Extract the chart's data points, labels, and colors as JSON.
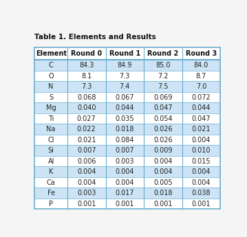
{
  "title": "Table 1. Elements and Results",
  "columns": [
    "Element",
    "Round 0",
    "Round 1",
    "Round 2",
    "Round 3"
  ],
  "rows": [
    [
      "C",
      "84.3",
      "84.9",
      "85.0",
      "84.0"
    ],
    [
      "O",
      "8.1",
      "7.3",
      "7.2",
      "8.7"
    ],
    [
      "N",
      "7.3",
      "7.4",
      "7.5",
      "7.0"
    ],
    [
      "S",
      "0.068",
      "0.067",
      "0.069",
      "0.072"
    ],
    [
      "Mg",
      "0.040",
      "0.044",
      "0.047",
      "0.044"
    ],
    [
      "Ti",
      "0.027",
      "0.035",
      "0.054",
      "0.047"
    ],
    [
      "Na",
      "0.022",
      "0.018",
      "0.026",
      "0.021"
    ],
    [
      "Cl",
      "0.021",
      "0.084",
      "0.026",
      "0.004"
    ],
    [
      "Si",
      "0.007",
      "0.007",
      "0.009",
      "0.010"
    ],
    [
      "Al",
      "0.006",
      "0.003",
      "0.004",
      "0.015"
    ],
    [
      "K",
      "0.004",
      "0.004",
      "0.004",
      "0.004"
    ],
    [
      "Ca",
      "0.004",
      "0.004",
      "0.005",
      "0.004"
    ],
    [
      "Fe",
      "0.003",
      "0.017",
      "0.018",
      "0.038"
    ],
    [
      "P",
      "0.001",
      "0.001",
      "0.001",
      "0.001"
    ]
  ],
  "shaded_rows": [
    0,
    2,
    4,
    6,
    8,
    10,
    12
  ],
  "row_bg_shaded": "#cce4f5",
  "row_bg_white": "#ffffff",
  "header_bg": "#ffffff",
  "fig_bg": "#f5f5f5",
  "title_fontsize": 7.5,
  "header_fontsize": 7.0,
  "cell_fontsize": 7.0,
  "title_color": "#111111",
  "header_text_color": "#111111",
  "cell_text_color": "#222222",
  "divider_color": "#6aadcf",
  "border_color": "#6aadcf"
}
